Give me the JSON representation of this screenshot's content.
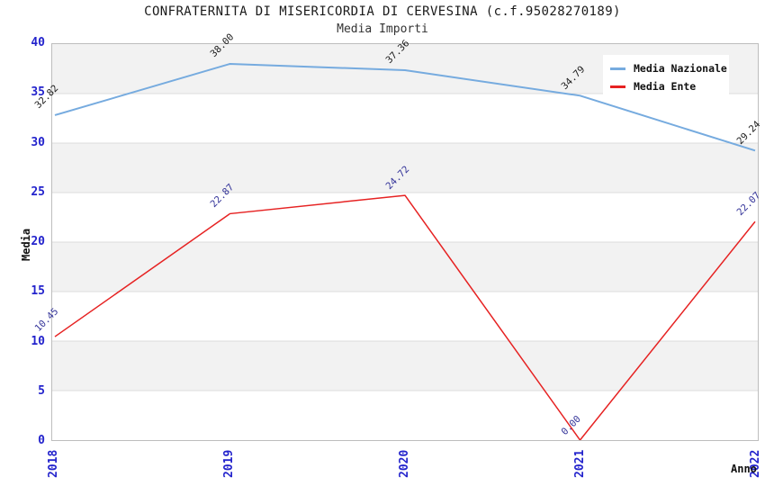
{
  "chart_data": {
    "type": "line",
    "title": "CONFRATERNITA DI MISERICORDIA DI CERVESINA (c.f.95028270189)",
    "subtitle": "Media Importi",
    "xlabel": "Anno",
    "ylabel": "Media",
    "categories": [
      "2018",
      "2019",
      "2020",
      "2021",
      "2022"
    ],
    "series": [
      {
        "name": "Media Nazionale",
        "color": "#76abdf",
        "label_color": "#1a1a1a",
        "line_width": 2,
        "values": [
          32.82,
          38.0,
          37.36,
          34.79,
          29.24
        ],
        "point_labels": [
          "32.82",
          "38.00",
          "37.36",
          "34.79",
          "29.24"
        ]
      },
      {
        "name": "Media Ente",
        "color": "#e62222",
        "label_color": "#333399",
        "line_width": 1.5,
        "values": [
          10.45,
          22.87,
          24.72,
          0.0,
          22.07
        ],
        "point_labels": [
          "10.45",
          "22.87",
          "24.72",
          "0.00",
          "22.07"
        ]
      }
    ],
    "ylim": [
      0,
      40
    ],
    "yticks": [
      0,
      5,
      10,
      15,
      20,
      25,
      30,
      35,
      40
    ],
    "grid": true,
    "legend_position": "top-right",
    "colors": {
      "band": "#f2f2f2",
      "gridline": "#dcdcdc",
      "axis_border": "#bdbdbd",
      "tick_label": "#2323cc",
      "title": "#1a1a1a",
      "subtitle": "#333333",
      "legend_bg": "#ffffff"
    }
  }
}
